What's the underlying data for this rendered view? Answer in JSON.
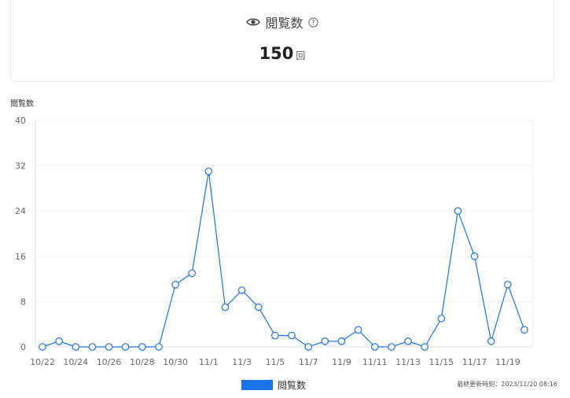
{
  "metric": {
    "title": "閲覧数",
    "value": "150",
    "unit": "回",
    "icon": "eye-icon",
    "help_icon": "question-circle-icon"
  },
  "axis_title": "閲覧数",
  "legend_label": "閲覧数",
  "updated_text": "最終更新時刻：2023/11/20 08:16",
  "colors": {
    "line": "#1a73e8",
    "grid": "#eeeeee"
  },
  "chart_data": {
    "type": "line",
    "x": [
      "10/22",
      "10/23",
      "10/24",
      "10/25",
      "10/26",
      "10/27",
      "10/28",
      "10/29",
      "10/30",
      "10/31",
      "11/1",
      "11/2",
      "11/3",
      "11/4",
      "11/5",
      "11/6",
      "11/7",
      "11/8",
      "11/9",
      "11/10",
      "11/11",
      "11/12",
      "11/13",
      "11/14",
      "11/15",
      "11/16",
      "11/17",
      "11/18",
      "11/19",
      "11/20"
    ],
    "x_tick_labels": [
      "10/22",
      "10/24",
      "10/26",
      "10/28",
      "10/30",
      "11/1",
      "11/3",
      "11/5",
      "11/7",
      "11/9",
      "11/11",
      "11/13",
      "11/15",
      "11/17",
      "11/19"
    ],
    "series": [
      {
        "name": "閲覧数",
        "values": [
          0,
          1,
          0,
          0,
          0,
          0,
          0,
          0,
          11,
          13,
          31,
          7,
          10,
          7,
          2,
          2,
          0,
          1,
          1,
          3,
          0,
          0,
          1,
          0,
          5,
          24,
          16,
          1,
          11,
          3
        ]
      }
    ],
    "ylabel": "閲覧数",
    "ylim": [
      0,
      40
    ],
    "yticks": [
      0,
      8,
      16,
      24,
      32,
      40
    ],
    "grid": true,
    "legend": "bottom-center"
  }
}
